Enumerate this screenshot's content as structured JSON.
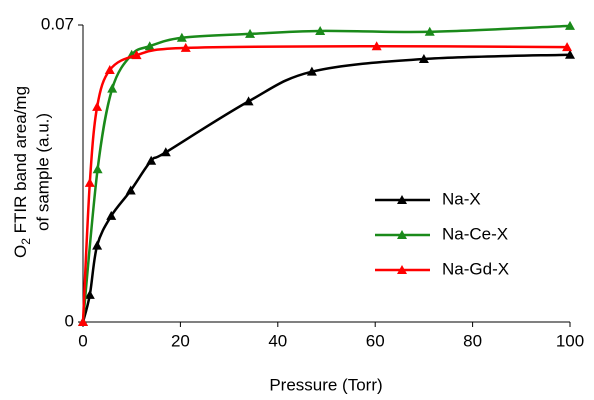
{
  "chart_data": {
    "type": "line",
    "xlabel": "Pressure (Torr)",
    "ylabel_parts": [
      "O",
      "2",
      " FTIR band area/mg",
      "of sample (a.u.)"
    ],
    "xlim": [
      0,
      100
    ],
    "xticks": [
      0,
      20,
      40,
      60,
      80,
      100
    ],
    "ylim": [
      0,
      0.07
    ],
    "yticks": [
      0,
      0.07
    ],
    "legend": "right",
    "series": [
      {
        "name": "Na-X",
        "color": "#000000",
        "text_color": "#000000",
        "x": [
          0,
          1.4,
          2.9,
          5.8,
          9.8,
          14,
          17,
          34,
          47,
          70,
          100
        ],
        "values": [
          0,
          0.0064,
          0.018,
          0.025,
          0.031,
          0.038,
          0.04,
          0.052,
          0.059,
          0.062,
          0.063
        ]
      },
      {
        "name": "Na-Ce-X",
        "color": "#1a8a1a",
        "text_color": "#1a8a1a",
        "x": [
          0,
          3,
          6,
          10,
          13.7,
          20.3,
          34.3,
          48.7,
          71.2,
          100
        ],
        "values": [
          0,
          0.036,
          0.055,
          0.063,
          0.065,
          0.067,
          0.0679,
          0.0686,
          0.0684,
          0.0698
        ]
      },
      {
        "name": "Na-Gd-X",
        "color": "#ff0000",
        "text_color": "#ff0000",
        "x": [
          0,
          1.4,
          2.9,
          5.5,
          11,
          21.1,
          60.3,
          99.4
        ],
        "values": [
          0,
          0.0328,
          0.0507,
          0.0594,
          0.0629,
          0.0646,
          0.065,
          0.0648
        ]
      }
    ]
  }
}
